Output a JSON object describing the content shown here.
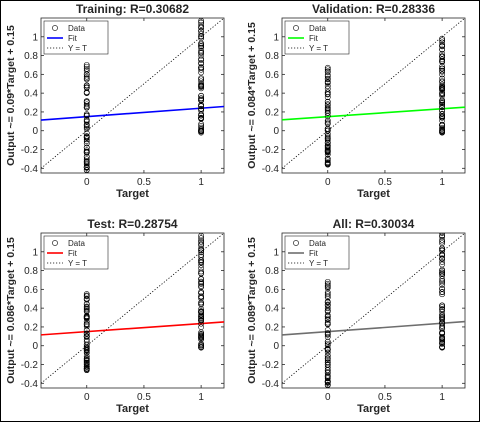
{
  "chart_data": [
    {
      "type": "scatter",
      "title": "Training: R=0.30682",
      "xlabel": "Target",
      "ylabel": "Output ~= 0.09*Target + 0.15",
      "fit_color": "#0000ff",
      "fit": {
        "slope": 0.09,
        "intercept": 0.15
      },
      "xlim": [
        -0.4,
        1.2
      ],
      "ylim": [
        -0.45,
        1.2
      ],
      "xticks": [
        "0",
        "0.5",
        "1"
      ],
      "yticks": [
        "-0.4",
        "-0.2",
        "0",
        "0.2",
        "0.4",
        "0.6",
        "0.8",
        "1"
      ],
      "legend": [
        "Data",
        "Fit",
        "Y = T"
      ],
      "legend_position": "top-left",
      "grid": false,
      "points": {
        "x0": [
          -0.42,
          0.7
        ],
        "x1": [
          -0.02,
          1.17
        ]
      }
    },
    {
      "type": "scatter",
      "title": "Validation: R=0.28336",
      "xlabel": "Target",
      "ylabel": "Output ~= 0.084*Target + 0.15",
      "fit_color": "#00ff00",
      "fit": {
        "slope": 0.084,
        "intercept": 0.15
      },
      "xlim": [
        -0.4,
        1.2
      ],
      "ylim": [
        -0.45,
        1.2
      ],
      "xticks": [
        "0",
        "0.5",
        "1"
      ],
      "yticks": [
        "-0.4",
        "-0.2",
        "0",
        "0.2",
        "0.4",
        "0.6",
        "0.8",
        "1"
      ],
      "legend": [
        "Data",
        "Fit",
        "Y = T"
      ],
      "legend_position": "top-left",
      "grid": false,
      "points": {
        "x0": [
          -0.36,
          0.67
        ],
        "x1": [
          -0.02,
          0.98
        ]
      }
    },
    {
      "type": "scatter",
      "title": "Test: R=0.28754",
      "xlabel": "Target",
      "ylabel": "Output ~= 0.086*Target + 0.15",
      "fit_color": "#ff0000",
      "fit": {
        "slope": 0.086,
        "intercept": 0.15
      },
      "xlim": [
        -0.4,
        1.2
      ],
      "ylim": [
        -0.45,
        1.2
      ],
      "xticks": [
        "0",
        "0.5",
        "1"
      ],
      "yticks": [
        "-0.4",
        "-0.2",
        "0",
        "0.2",
        "0.4",
        "0.6",
        "0.8",
        "1"
      ],
      "legend": [
        "Data",
        "Fit",
        "Y = T"
      ],
      "legend_position": "top-left",
      "grid": false,
      "points": {
        "x0": [
          -0.26,
          0.55
        ],
        "x1": [
          -0.02,
          1.17
        ]
      }
    },
    {
      "type": "scatter",
      "title": "All: R=0.30034",
      "xlabel": "Target",
      "ylabel": "Output ~= 0.089*Target + 0.15",
      "fit_color": "#6e6e6e",
      "fit": {
        "slope": 0.089,
        "intercept": 0.15
      },
      "xlim": [
        -0.4,
        1.2
      ],
      "ylim": [
        -0.45,
        1.2
      ],
      "xticks": [
        "0",
        "0.5",
        "1"
      ],
      "yticks": [
        "-0.4",
        "-0.2",
        "0",
        "0.2",
        "0.4",
        "0.6",
        "0.8",
        "1"
      ],
      "legend": [
        "Data",
        "Fit",
        "Y = T"
      ],
      "legend_position": "top-left",
      "grid": false,
      "points": {
        "x0": [
          -0.42,
          0.68
        ],
        "x1": [
          -0.02,
          1.2
        ]
      }
    }
  ]
}
